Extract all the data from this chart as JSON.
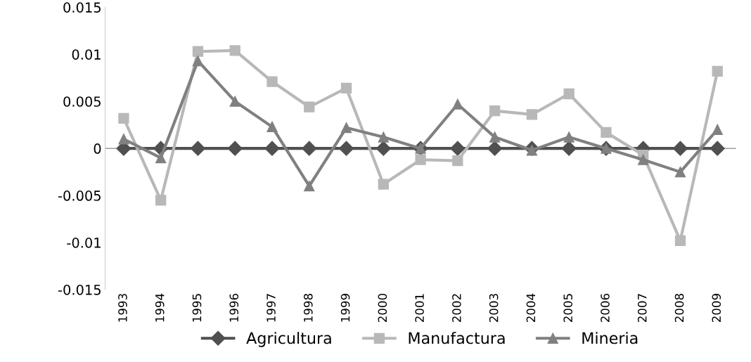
{
  "chart_data": {
    "type": "line",
    "categories": [
      "1993",
      "1994",
      "1995",
      "1996",
      "1997",
      "1998",
      "1999",
      "2000",
      "2001",
      "2002",
      "2003",
      "2004",
      "2005",
      "2006",
      "2007",
      "2008",
      "2009"
    ],
    "series": [
      {
        "name": "Agricultura",
        "color": "#505050",
        "marker": "diamond",
        "values": [
          0,
          0,
          0,
          0,
          0,
          0,
          0,
          0,
          0,
          0,
          0,
          0,
          0,
          0,
          0,
          0,
          0
        ]
      },
      {
        "name": "Manufactura",
        "color": "#b8b8b8",
        "marker": "square",
        "values": [
          0.0032,
          -0.0055,
          0.0103,
          0.0104,
          0.0071,
          0.0044,
          0.0064,
          -0.0038,
          -0.0012,
          -0.0013,
          0.004,
          0.0036,
          0.0058,
          0.0017,
          -0.0007,
          -0.0098,
          0.0082
        ]
      },
      {
        "name": "Mineria",
        "color": "#808080",
        "marker": "triangle",
        "values": [
          0.001,
          -0.001,
          0.0093,
          0.005,
          0.0023,
          -0.004,
          0.0022,
          0.0012,
          0.0,
          0.0047,
          0.0012,
          -0.0002,
          0.0012,
          0.0,
          -0.0012,
          -0.0025,
          0.002
        ]
      }
    ],
    "ylim": [
      -0.015,
      0.015
    ],
    "yticks": [
      -0.015,
      -0.01,
      -0.005,
      0,
      0.005,
      0.01,
      0.015
    ],
    "grid": false,
    "legend": "bottom",
    "line_style": "solid"
  }
}
